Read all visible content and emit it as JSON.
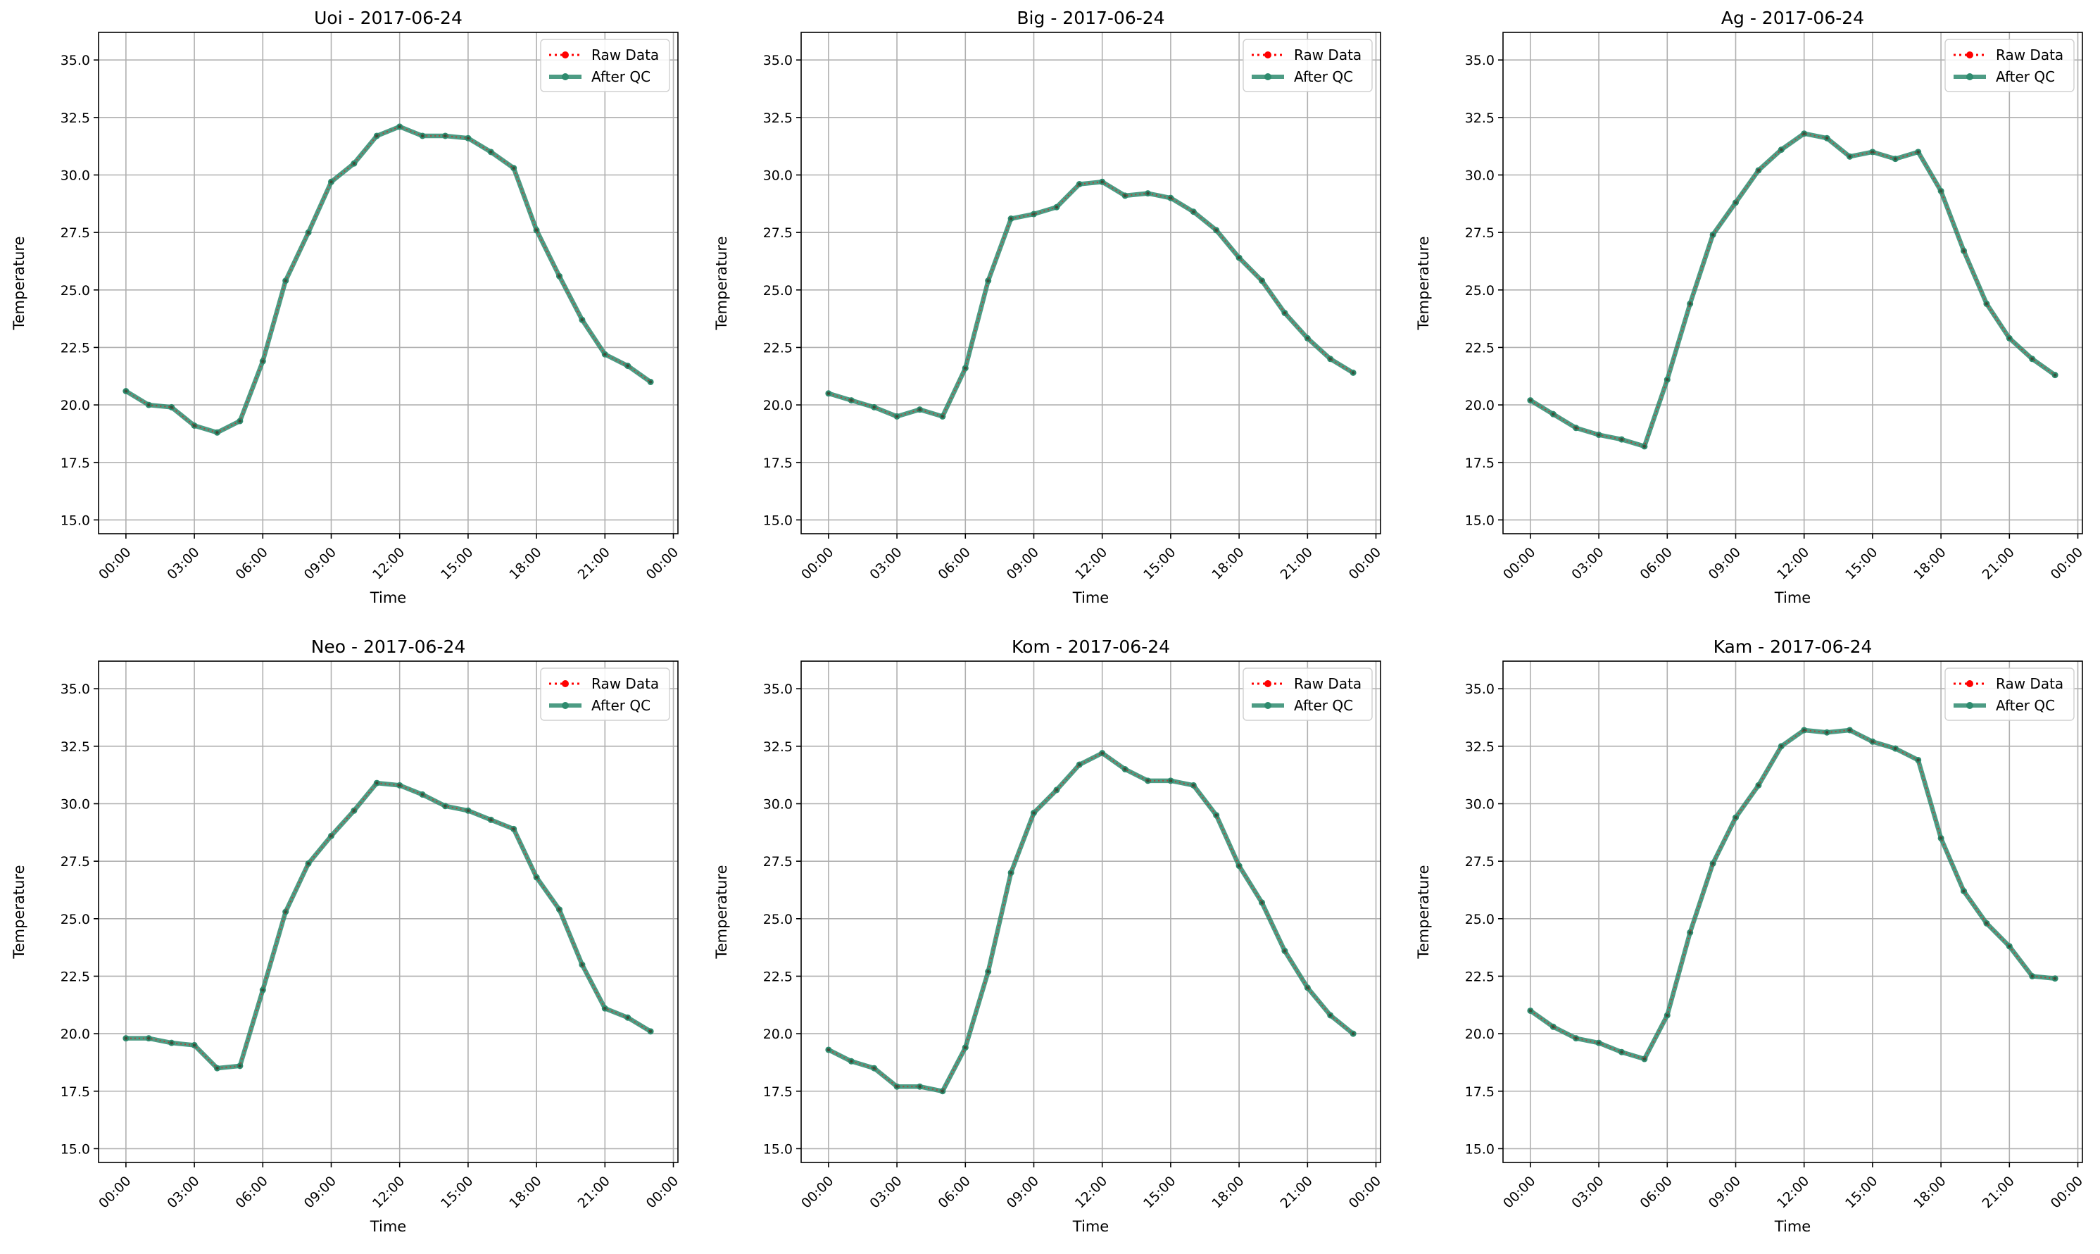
{
  "colors": {
    "raw": "#ff0000",
    "after_qc": "#2e8b6e",
    "grid": "#b0b0b0",
    "axes": "#000000"
  },
  "chart_data": [
    {
      "type": "line",
      "title": "Uoi - 2017-06-24",
      "xlabel": "Time",
      "ylabel": "Temperature",
      "xticks": [
        "00:00",
        "03:00",
        "06:00",
        "09:00",
        "12:00",
        "15:00",
        "18:00",
        "21:00",
        "00:00"
      ],
      "xlim": [
        -1.2,
        24.2
      ],
      "yticks": [
        "15.0",
        "17.5",
        "20.0",
        "22.5",
        "25.0",
        "27.5",
        "30.0",
        "32.5",
        "35.0"
      ],
      "ylim": [
        14.4,
        36.2
      ],
      "grid": true,
      "legend": "top-right",
      "x": [
        0,
        1,
        2,
        3,
        4,
        5,
        6,
        7,
        8,
        9,
        10,
        11,
        12,
        13,
        14,
        15,
        16,
        17,
        18,
        19,
        20,
        21,
        22,
        23
      ],
      "series": [
        {
          "name": "Raw Data",
          "style": "dotted-red",
          "values": [
            20.6,
            20.0,
            19.9,
            19.1,
            18.8,
            19.3,
            21.9,
            25.4,
            27.5,
            29.7,
            30.5,
            31.7,
            32.1,
            31.7,
            31.7,
            31.6,
            31.0,
            30.3,
            27.6,
            25.6,
            23.7,
            22.2,
            21.7,
            21.0
          ]
        },
        {
          "name": "After QC",
          "style": "solid-green",
          "values": [
            20.6,
            20.0,
            19.9,
            19.1,
            18.8,
            19.3,
            21.9,
            25.4,
            27.5,
            29.7,
            30.5,
            31.7,
            32.1,
            31.7,
            31.7,
            31.6,
            31.0,
            30.3,
            27.6,
            25.6,
            23.7,
            22.2,
            21.7,
            21.0
          ]
        }
      ]
    },
    {
      "type": "line",
      "title": "Big - 2017-06-24",
      "xlabel": "Time",
      "ylabel": "Temperature",
      "xticks": [
        "00:00",
        "03:00",
        "06:00",
        "09:00",
        "12:00",
        "15:00",
        "18:00",
        "21:00",
        "00:00"
      ],
      "xlim": [
        -1.2,
        24.2
      ],
      "yticks": [
        "15.0",
        "17.5",
        "20.0",
        "22.5",
        "25.0",
        "27.5",
        "30.0",
        "32.5",
        "35.0"
      ],
      "ylim": [
        14.4,
        36.2
      ],
      "grid": true,
      "legend": "top-right",
      "x": [
        0,
        1,
        2,
        3,
        4,
        5,
        6,
        7,
        8,
        9,
        10,
        11,
        12,
        13,
        14,
        15,
        16,
        17,
        18,
        19,
        20,
        21,
        22,
        23
      ],
      "series": [
        {
          "name": "Raw Data",
          "style": "dotted-red",
          "values": [
            20.5,
            20.2,
            19.9,
            19.5,
            19.8,
            19.5,
            21.6,
            25.4,
            28.1,
            28.3,
            28.6,
            29.6,
            29.7,
            29.1,
            29.2,
            29.0,
            28.4,
            27.6,
            26.4,
            25.4,
            24.0,
            22.9,
            22.0,
            21.4
          ]
        },
        {
          "name": "After QC",
          "style": "solid-green",
          "values": [
            20.5,
            20.2,
            19.9,
            19.5,
            19.8,
            19.5,
            21.6,
            25.4,
            28.1,
            28.3,
            28.6,
            29.6,
            29.7,
            29.1,
            29.2,
            29.0,
            28.4,
            27.6,
            26.4,
            25.4,
            24.0,
            22.9,
            22.0,
            21.4
          ]
        }
      ]
    },
    {
      "type": "line",
      "title": "Ag - 2017-06-24",
      "xlabel": "Time",
      "ylabel": "Temperature",
      "xticks": [
        "00:00",
        "03:00",
        "06:00",
        "09:00",
        "12:00",
        "15:00",
        "18:00",
        "21:00",
        "00:00"
      ],
      "xlim": [
        -1.2,
        24.2
      ],
      "yticks": [
        "15.0",
        "17.5",
        "20.0",
        "22.5",
        "25.0",
        "27.5",
        "30.0",
        "32.5",
        "35.0"
      ],
      "ylim": [
        14.4,
        36.2
      ],
      "grid": true,
      "legend": "top-right",
      "x": [
        0,
        1,
        2,
        3,
        4,
        5,
        6,
        7,
        8,
        9,
        10,
        11,
        12,
        13,
        14,
        15,
        16,
        17,
        18,
        19,
        20,
        21,
        22,
        23
      ],
      "series": [
        {
          "name": "Raw Data",
          "style": "dotted-red",
          "values": [
            20.2,
            19.6,
            19.0,
            18.7,
            18.5,
            18.2,
            21.1,
            24.4,
            27.4,
            28.8,
            30.2,
            31.1,
            31.8,
            31.6,
            30.8,
            31.0,
            30.7,
            31.0,
            29.3,
            26.7,
            24.4,
            22.9,
            22.0,
            21.3
          ]
        },
        {
          "name": "After QC",
          "style": "solid-green",
          "values": [
            20.2,
            19.6,
            19.0,
            18.7,
            18.5,
            18.2,
            21.1,
            24.4,
            27.4,
            28.8,
            30.2,
            31.1,
            31.8,
            31.6,
            30.8,
            31.0,
            30.7,
            31.0,
            29.3,
            26.7,
            24.4,
            22.9,
            22.0,
            21.3
          ]
        }
      ]
    },
    {
      "type": "line",
      "title": "Neo - 2017-06-24",
      "xlabel": "Time",
      "ylabel": "Temperature",
      "xticks": [
        "00:00",
        "03:00",
        "06:00",
        "09:00",
        "12:00",
        "15:00",
        "18:00",
        "21:00",
        "00:00"
      ],
      "xlim": [
        -1.2,
        24.2
      ],
      "yticks": [
        "15.0",
        "17.5",
        "20.0",
        "22.5",
        "25.0",
        "27.5",
        "30.0",
        "32.5",
        "35.0"
      ],
      "ylim": [
        14.4,
        36.2
      ],
      "grid": true,
      "legend": "top-right",
      "x": [
        0,
        1,
        2,
        3,
        4,
        5,
        6,
        7,
        8,
        9,
        10,
        11,
        12,
        13,
        14,
        15,
        16,
        17,
        18,
        19,
        20,
        21,
        22,
        23
      ],
      "series": [
        {
          "name": "Raw Data",
          "style": "dotted-red",
          "values": [
            19.8,
            19.8,
            19.6,
            19.5,
            18.5,
            18.6,
            21.9,
            25.3,
            27.4,
            28.6,
            29.7,
            30.9,
            30.8,
            30.4,
            29.9,
            29.7,
            29.3,
            28.9,
            26.8,
            25.4,
            23.0,
            21.1,
            20.7,
            20.1
          ]
        },
        {
          "name": "After QC",
          "style": "solid-green",
          "values": [
            19.8,
            19.8,
            19.6,
            19.5,
            18.5,
            18.6,
            21.9,
            25.3,
            27.4,
            28.6,
            29.7,
            30.9,
            30.8,
            30.4,
            29.9,
            29.7,
            29.3,
            28.9,
            26.8,
            25.4,
            23.0,
            21.1,
            20.7,
            20.1
          ]
        }
      ]
    },
    {
      "type": "line",
      "title": "Kom - 2017-06-24",
      "xlabel": "Time",
      "ylabel": "Temperature",
      "xticks": [
        "00:00",
        "03:00",
        "06:00",
        "09:00",
        "12:00",
        "15:00",
        "18:00",
        "21:00",
        "00:00"
      ],
      "xlim": [
        -1.2,
        24.2
      ],
      "yticks": [
        "15.0",
        "17.5",
        "20.0",
        "22.5",
        "25.0",
        "27.5",
        "30.0",
        "32.5",
        "35.0"
      ],
      "ylim": [
        14.4,
        36.2
      ],
      "grid": true,
      "legend": "top-right",
      "x": [
        0,
        1,
        2,
        3,
        4,
        5,
        6,
        7,
        8,
        9,
        10,
        11,
        12,
        13,
        14,
        15,
        16,
        17,
        18,
        19,
        20,
        21,
        22,
        23
      ],
      "series": [
        {
          "name": "Raw Data",
          "style": "dotted-red",
          "values": [
            19.3,
            18.8,
            18.5,
            17.7,
            17.7,
            17.5,
            19.4,
            22.7,
            27.0,
            29.6,
            30.6,
            31.7,
            32.2,
            31.5,
            31.0,
            31.0,
            30.8,
            29.5,
            27.3,
            25.7,
            23.6,
            22.0,
            20.8,
            20.0
          ]
        },
        {
          "name": "After QC",
          "style": "solid-green",
          "values": [
            19.3,
            18.8,
            18.5,
            17.7,
            17.7,
            17.5,
            19.4,
            22.7,
            27.0,
            29.6,
            30.6,
            31.7,
            32.2,
            31.5,
            31.0,
            31.0,
            30.8,
            29.5,
            27.3,
            25.7,
            23.6,
            22.0,
            20.8,
            20.0
          ]
        }
      ]
    },
    {
      "type": "line",
      "title": "Kam - 2017-06-24",
      "xlabel": "Time",
      "ylabel": "Temperature",
      "xticks": [
        "00:00",
        "03:00",
        "06:00",
        "09:00",
        "12:00",
        "15:00",
        "18:00",
        "21:00",
        "00:00"
      ],
      "xlim": [
        -1.2,
        24.2
      ],
      "yticks": [
        "15.0",
        "17.5",
        "20.0",
        "22.5",
        "25.0",
        "27.5",
        "30.0",
        "32.5",
        "35.0"
      ],
      "ylim": [
        14.4,
        36.2
      ],
      "grid": true,
      "legend": "top-right",
      "x": [
        0,
        1,
        2,
        3,
        4,
        5,
        6,
        7,
        8,
        9,
        10,
        11,
        12,
        13,
        14,
        15,
        16,
        17,
        18,
        19,
        20,
        21,
        22,
        23
      ],
      "series": [
        {
          "name": "Raw Data",
          "style": "dotted-red",
          "values": [
            21.0,
            20.3,
            19.8,
            19.6,
            19.2,
            18.9,
            20.8,
            24.4,
            27.4,
            29.4,
            30.8,
            32.5,
            33.2,
            33.1,
            33.2,
            32.7,
            32.4,
            31.9,
            28.5,
            26.2,
            24.8,
            23.8,
            22.5,
            22.4
          ]
        },
        {
          "name": "After QC",
          "style": "solid-green",
          "values": [
            21.0,
            20.3,
            19.8,
            19.6,
            19.2,
            18.9,
            20.8,
            24.4,
            27.4,
            29.4,
            30.8,
            32.5,
            33.2,
            33.1,
            33.2,
            32.7,
            32.4,
            31.9,
            28.5,
            26.2,
            24.8,
            23.8,
            22.5,
            22.4
          ]
        }
      ]
    }
  ]
}
